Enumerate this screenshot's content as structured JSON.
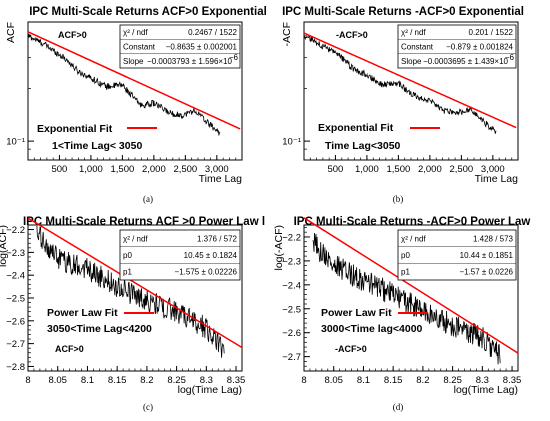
{
  "chart_data": [
    {
      "type": "line",
      "panel": "(a)",
      "title": "IPC Multi-Scale Returns ACF>0 Exponential",
      "xlabel": "Time Lag",
      "ylabel": "ACF",
      "ylog": true,
      "xlim": [
        1,
        3400
      ],
      "ylim": [
        0.078,
        0.48
      ],
      "x_ticks": [
        500,
        1000,
        1500,
        2000,
        2500,
        3000
      ],
      "x_tick_labels": [
        "500",
        "1,000",
        "1,500",
        "2,000",
        "2,500",
        "3,000"
      ],
      "y_ticks": [
        0.1
      ],
      "y_tick_labels": [
        "10⁻¹"
      ],
      "grid": false,
      "legend": "none",
      "data_series": {
        "name": "ACF>0",
        "anchors": [
          [
            5,
            0.4
          ],
          [
            250,
            0.36
          ],
          [
            600,
            0.295
          ],
          [
            800,
            0.25
          ],
          [
            1000,
            0.23
          ],
          [
            1250,
            0.205
          ],
          [
            1500,
            0.21
          ],
          [
            1600,
            0.19
          ],
          [
            1800,
            0.16
          ],
          [
            2000,
            0.165
          ],
          [
            2250,
            0.145
          ],
          [
            2450,
            0.14
          ],
          [
            2650,
            0.15
          ],
          [
            2850,
            0.128
          ],
          [
            3050,
            0.111
          ]
        ],
        "noise": 0.018
      },
      "fit_line": {
        "x_range": [
          1,
          3370
        ],
        "model": "exponential",
        "constant": -0.8635,
        "slope": -0.0003793
      },
      "stats_box": {
        "rows": [
          {
            "label": "χ² / ndf",
            "value": "0.2467 / 1522",
            "superscript": ""
          },
          {
            "label": "Constant",
            "value": "−0.8635 ± 0.002001",
            "superscript": ""
          },
          {
            "label": "Slope",
            "value": "−0.0003793 ± 1.596×10",
            "superscript": "−6"
          }
        ]
      },
      "annotations": {
        "series_label": "ACF>0",
        "fit_label": "Exponential Fit",
        "range_label": "1<Time Lag< 3050"
      },
      "colors": {
        "data": "#000000",
        "fit": "#ff0000"
      }
    },
    {
      "type": "line",
      "panel": "(b)",
      "title": "IPC Multi-Scale Returns -ACF>0 Exponential",
      "xlabel": "Time Lag",
      "ylabel": "-ACF",
      "ylog": true,
      "xlim": [
        1,
        3400
      ],
      "ylim": [
        0.078,
        0.48
      ],
      "x_ticks": [
        500,
        1000,
        1500,
        2000,
        2500,
        3000
      ],
      "x_tick_labels": [
        "500",
        "1,000",
        "1,500",
        "2,000",
        "2,500",
        "3,000"
      ],
      "y_ticks": [
        0.1
      ],
      "y_tick_labels": [
        "10⁻¹"
      ],
      "grid": false,
      "legend": "none",
      "data_series": {
        "name": "-ACF>0",
        "anchors": [
          [
            5,
            0.4
          ],
          [
            300,
            0.35
          ],
          [
            600,
            0.3
          ],
          [
            800,
            0.255
          ],
          [
            1000,
            0.24
          ],
          [
            1250,
            0.21
          ],
          [
            1500,
            0.215
          ],
          [
            1700,
            0.185
          ],
          [
            2000,
            0.17
          ],
          [
            2200,
            0.15
          ],
          [
            2450,
            0.145
          ],
          [
            2650,
            0.152
          ],
          [
            2850,
            0.13
          ],
          [
            3050,
            0.112
          ]
        ],
        "noise": 0.018
      },
      "fit_line": {
        "x_range": [
          1,
          3370
        ],
        "model": "exponential",
        "constant": -0.879,
        "slope": -0.0003695
      },
      "stats_box": {
        "rows": [
          {
            "label": "χ² / ndf",
            "value": "0.201 / 1522",
            "superscript": ""
          },
          {
            "label": "Constant",
            "value": "−0.879 ± 0.001824",
            "superscript": ""
          },
          {
            "label": "Slope",
            "value": "−0.0003695 ± 1.439×10",
            "superscript": "−6"
          }
        ]
      },
      "annotations": {
        "series_label": "-ACF>0",
        "fit_label": "Exponential Fit",
        "range_label": "Time Lag<3050"
      },
      "colors": {
        "data": "#000000",
        "fit": "#ff0000"
      }
    },
    {
      "type": "line",
      "panel": "(c)",
      "title": "IPC Multi-Scale Returns ACF >0 Power Law l",
      "xlabel": "log(Time Lag)",
      "ylabel": "log(ACF)",
      "ylog": false,
      "xlim": [
        8.0,
        8.36
      ],
      "ylim": [
        -2.82,
        -2.18
      ],
      "x_ticks": [
        8.0,
        8.05,
        8.1,
        8.15,
        8.2,
        8.25,
        8.3,
        8.35
      ],
      "x_tick_labels": [
        "8",
        "8.05",
        "8.1",
        "8.15",
        "8.2",
        "8.25",
        "8.3",
        "8.35"
      ],
      "y_ticks": [
        -2.8,
        -2.7,
        -2.6,
        -2.5,
        -2.4,
        -2.3,
        -2.2
      ],
      "y_tick_labels": [
        "−2.8",
        "−2.7",
        "−2.6",
        "−2.5",
        "−2.4",
        "−2.3",
        "−2.2"
      ],
      "grid": false,
      "legend": "none",
      "data_series": {
        "name": "ACF>0",
        "anchors": [
          [
            8.015,
            -2.22
          ],
          [
            8.05,
            -2.33
          ],
          [
            8.1,
            -2.37
          ],
          [
            8.15,
            -2.45
          ],
          [
            8.2,
            -2.51
          ],
          [
            8.25,
            -2.56
          ],
          [
            8.3,
            -2.63
          ],
          [
            8.33,
            -2.73
          ]
        ],
        "noise": 0.05
      },
      "fit_line": {
        "x_range": [
          8.0,
          8.36
        ],
        "model": "linear",
        "p0": 10.45,
        "p1": -1.575
      },
      "stats_box": {
        "rows": [
          {
            "label": "χ² / ndf",
            "value": "1.376 / 572",
            "superscript": ""
          },
          {
            "label": "p0",
            "value": "10.45 ± 0.1824",
            "superscript": ""
          },
          {
            "label": "p1",
            "value": "−1.575 ± 0.02226",
            "superscript": ""
          }
        ]
      },
      "annotations": {
        "series_label": "ACF>0",
        "fit_label": "Power Law Fit",
        "range_label": "3050<Time Lag<4200"
      },
      "colors": {
        "data": "#000000",
        "fit": "#ff0000"
      }
    },
    {
      "type": "line",
      "panel": "(d)",
      "title": "IPC Multi-Scale Returns -ACF>0 Power Law",
      "xlabel": "log(Time Lag)",
      "ylabel": "log(-ACF)",
      "ylog": false,
      "xlim": [
        8.0,
        8.36
      ],
      "ylim": [
        -2.76,
        -2.15
      ],
      "x_ticks": [
        8.0,
        8.05,
        8.1,
        8.15,
        8.2,
        8.25,
        8.3,
        8.35
      ],
      "x_tick_labels": [
        "8",
        "8.05",
        "8.1",
        "8.15",
        "8.2",
        "8.25",
        "8.3",
        "8.35"
      ],
      "y_ticks": [
        -2.7,
        -2.6,
        -2.5,
        -2.4,
        -2.3,
        -2.2
      ],
      "y_tick_labels": [
        "−2.7",
        "−2.6",
        "−2.5",
        "−2.4",
        "−2.3",
        "−2.2"
      ],
      "grid": false,
      "legend": "none",
      "data_series": {
        "name": "-ACF>0",
        "anchors": [
          [
            8.015,
            -2.22
          ],
          [
            8.05,
            -2.32
          ],
          [
            8.1,
            -2.38
          ],
          [
            8.15,
            -2.44
          ],
          [
            8.2,
            -2.51
          ],
          [
            8.25,
            -2.57
          ],
          [
            8.3,
            -2.62
          ],
          [
            8.33,
            -2.7
          ]
        ],
        "noise": 0.05
      },
      "fit_line": {
        "x_range": [
          8.0,
          8.36
        ],
        "model": "linear",
        "p0": 10.44,
        "p1": -1.57
      },
      "stats_box": {
        "rows": [
          {
            "label": "χ² / ndf",
            "value": "1.428 / 573",
            "superscript": ""
          },
          {
            "label": "p0",
            "value": "10.44 ± 0.1851",
            "superscript": ""
          },
          {
            "label": "p1",
            "value": "−1.57 ± 0.0226",
            "superscript": ""
          }
        ]
      },
      "annotations": {
        "series_label": "-ACF>0",
        "fit_label": "Power Law Fit",
        "range_label": "3000<Time lag<4000"
      },
      "colors": {
        "data": "#000000",
        "fit": "#ff0000"
      }
    }
  ]
}
